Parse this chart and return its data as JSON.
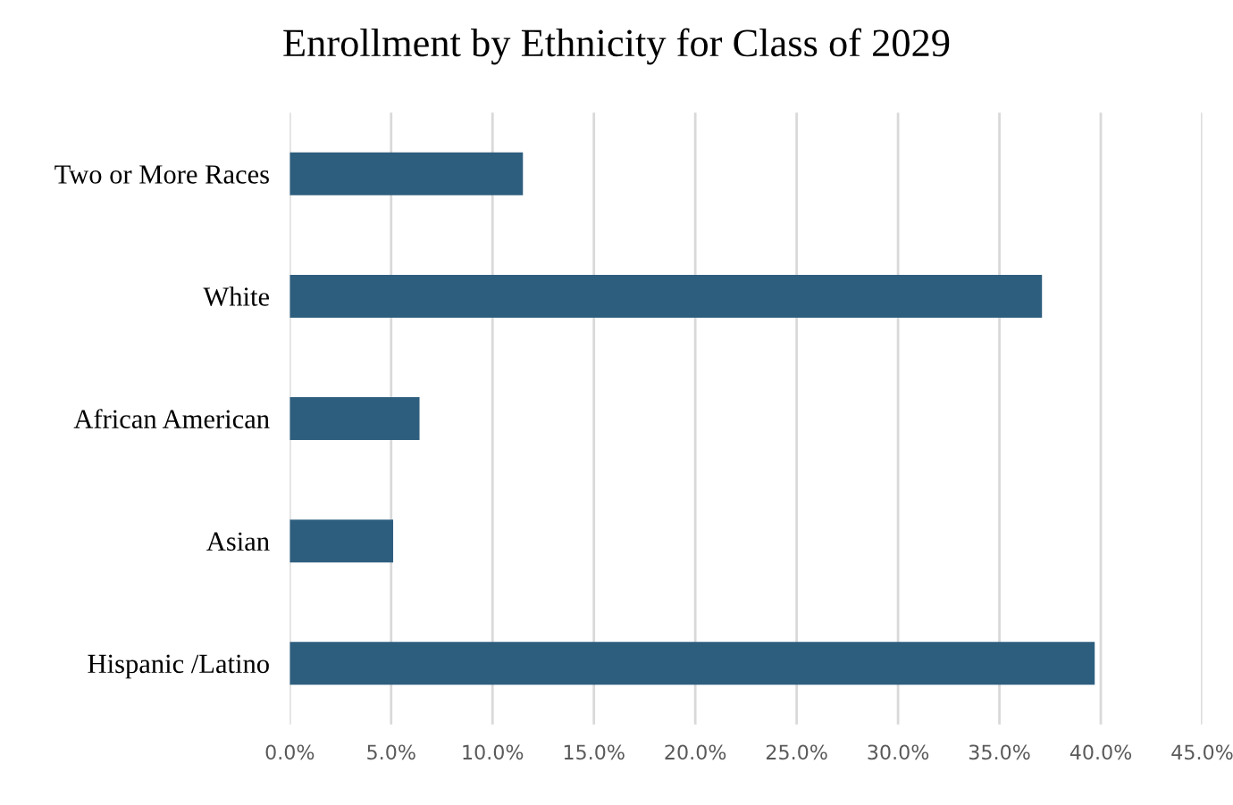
{
  "chart_data": {
    "type": "bar",
    "orientation": "horizontal",
    "title": "Enrollment by Ethnicity for Class of 2029",
    "categories": [
      "Two or More Races",
      "White",
      "African American",
      "Asian",
      "Hispanic /Latino"
    ],
    "values": [
      11.5,
      37.1,
      6.4,
      5.1,
      39.7
    ],
    "color": "#2e5e7e",
    "xlim": [
      0,
      45
    ],
    "xticks": [
      {
        "value": 0,
        "label": "0.0%"
      },
      {
        "value": 5,
        "label": "5.0%"
      },
      {
        "value": 10,
        "label": "10.0%"
      },
      {
        "value": 15,
        "label": "15.0%"
      },
      {
        "value": 20,
        "label": "20.0%"
      },
      {
        "value": 25,
        "label": "25.0%"
      },
      {
        "value": 30,
        "label": "30.0%"
      },
      {
        "value": 35,
        "label": "35.0%"
      },
      {
        "value": 40,
        "label": "40.0%"
      },
      {
        "value": 45,
        "label": "45.0%"
      }
    ],
    "grid": "x"
  }
}
